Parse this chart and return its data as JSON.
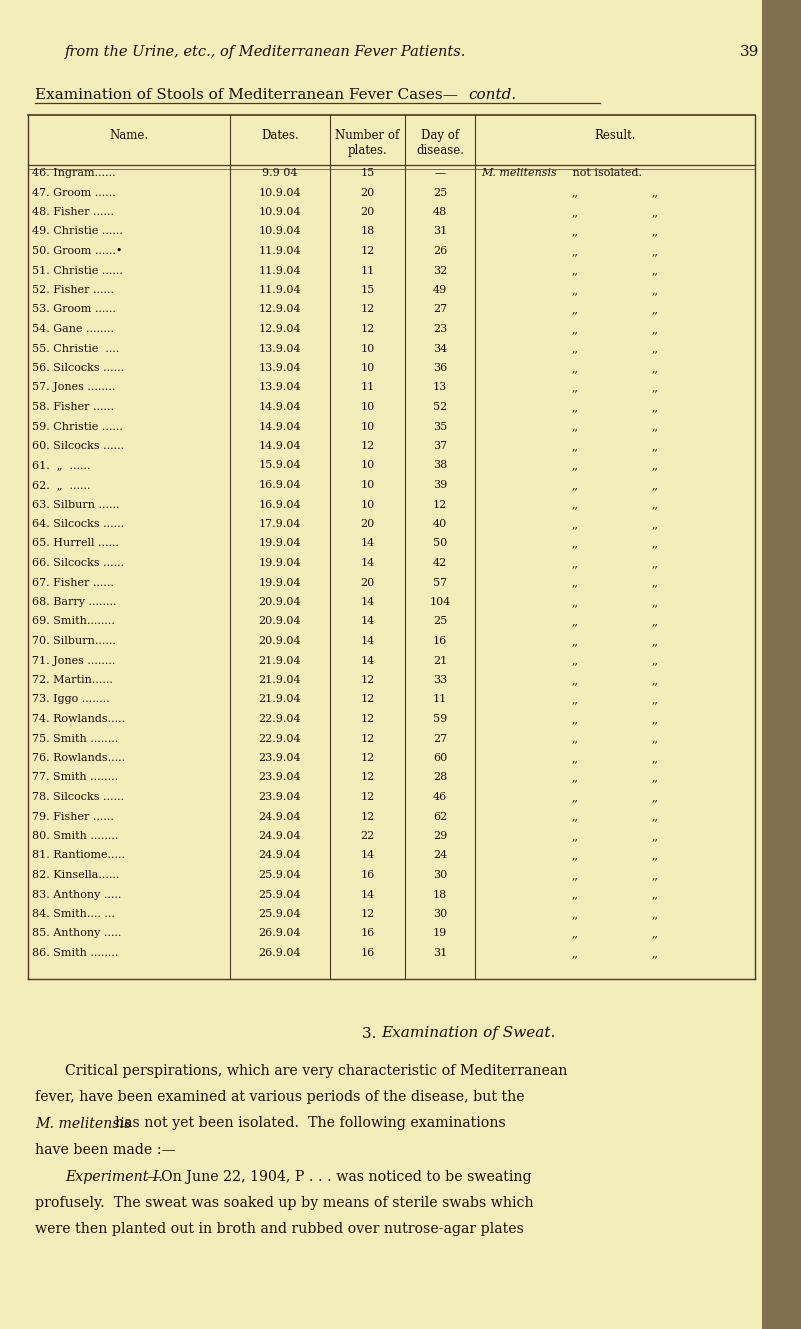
{
  "page_header_italic": "from the Urine, etc., of Mediterranean Fever Patients.",
  "page_number": "39",
  "table_title_normal": "Examination of Stools of Mediterranean Fever Cases—",
  "table_title_italic": "contd.",
  "col_headers": [
    "Name.",
    "Dates.",
    "Number of\nplates.",
    "Day of\ndisease.",
    "Result."
  ],
  "rows": [
    [
      "46. Ingram......",
      "9.9 04",
      "15",
      "—",
      "M. melitensis not isolated."
    ],
    [
      "47. Groom ......",
      "10.9.04",
      "20",
      "25",
      ",,"
    ],
    [
      "48. Fisher ......",
      "10.9.04",
      "20",
      "48",
      ",,"
    ],
    [
      "49. Christie ......",
      "10.9.04",
      "18",
      "31",
      ",,"
    ],
    [
      "50. Groom ......•",
      "11.9.04",
      "12",
      "26",
      ",,"
    ],
    [
      "51. Christie ......",
      "11.9.04",
      "11",
      "32",
      ",,"
    ],
    [
      "52. Fisher ......",
      "11.9.04",
      "15",
      "49",
      ",,"
    ],
    [
      "53. Groom ......",
      "12.9.04",
      "12",
      "27",
      ",,"
    ],
    [
      "54. Gane ........",
      "12.9.04",
      "12",
      "23",
      ",,"
    ],
    [
      "55. Christie  ....",
      "13.9.04",
      "10",
      "34",
      ",,"
    ],
    [
      "56. Silcocks ......",
      "13.9.04",
      "10",
      "36",
      ",,"
    ],
    [
      "57. Jones ........",
      "13.9.04",
      "11",
      "13",
      ",,"
    ],
    [
      "58. Fisher ......",
      "14.9.04",
      "10",
      "52",
      ",,"
    ],
    [
      "59. Christie ......",
      "14.9.04",
      "10",
      "35",
      ",,"
    ],
    [
      "60. Silcocks ......",
      "14.9.04",
      "12",
      "37",
      ",,"
    ],
    [
      "61.  „  ......",
      "15.9.04",
      "10",
      "38",
      ",,"
    ],
    [
      "62.  „  ......",
      "16.9.04",
      "10",
      "39",
      ",,"
    ],
    [
      "63. Silburn ......",
      "16.9.04",
      "10",
      "12",
      ",,"
    ],
    [
      "64. Silcocks ......",
      "17.9.04",
      "20",
      "40",
      ",,"
    ],
    [
      "65. Hurrell ......",
      "19.9.04",
      "14",
      "50",
      ",,"
    ],
    [
      "66. Silcocks ......",
      "19.9.04",
      "14",
      "42",
      ",,"
    ],
    [
      "67. Fisher ......",
      "19.9.04",
      "20",
      "57",
      ",,"
    ],
    [
      "68. Barry ........",
      "20.9.04",
      "14",
      "104",
      ",,"
    ],
    [
      "69. Smith........",
      "20.9.04",
      "14",
      "25",
      ",,"
    ],
    [
      "70. Silburn......",
      "20.9.04",
      "14",
      "16",
      ",,"
    ],
    [
      "71. Jones ........",
      "21.9.04",
      "14",
      "21",
      ",,"
    ],
    [
      "72. Martin......",
      "21.9.04",
      "12",
      "33",
      ",,"
    ],
    [
      "73. Iggo ........",
      "21.9.04",
      "12",
      "11",
      ",,"
    ],
    [
      "74. Rowlands.....",
      "22.9.04",
      "12",
      "59",
      ",,"
    ],
    [
      "75. Smith ........",
      "22.9.04",
      "12",
      "27",
      ",,"
    ],
    [
      "76. Rowlands.....",
      "23.9.04",
      "12",
      "60",
      ",,"
    ],
    [
      "77. Smith ........",
      "23.9.04",
      "12",
      "28",
      ",,"
    ],
    [
      "78. Silcocks ......",
      "23.9.04",
      "12",
      "46",
      ",,"
    ],
    [
      "79. Fisher ......",
      "24.9.04",
      "12",
      "62",
      ",,"
    ],
    [
      "80. Smith ........",
      "24.9.04",
      "22",
      "29",
      ",,"
    ],
    [
      "81. Rantiome.....",
      "24.9.04",
      "14",
      "24",
      ",,"
    ],
    [
      "82. Kinsella......",
      "25.9.04",
      "16",
      "30",
      ",,"
    ],
    [
      "83. Anthony .....",
      "25.9.04",
      "14",
      "18",
      ",,"
    ],
    [
      "84. Smith.... ...",
      "25.9.04",
      "12",
      "30",
      ",,"
    ],
    [
      "85. Anthony .....",
      "26.9.04",
      "16",
      "19",
      ",,"
    ],
    [
      "86. Smith ........",
      "26.9.04",
      "16",
      "31",
      ",,"
    ]
  ],
  "section_title_num": "3. ",
  "section_title_italic": "Examination of Sweat.",
  "body_paragraphs": [
    {
      "lines": [
        {
          "text": "Critical perspirations, which are very characteristic of Mediterranean",
          "indent": true
        },
        {
          "text": "fever, have been examined at various periods of the disease, but the",
          "indent": false
        },
        {
          "text": "has not yet been isolated.  The following examinations",
          "indent": false,
          "italic_prefix": "M. melitensis "
        },
        {
          "text": "have been made :—",
          "indent": false
        }
      ]
    },
    {
      "lines": [
        {
          "text": "—On June 22, 1904, P . . . was noticed to be sweating",
          "indent": false,
          "italic_prefix": "Experiment I."
        },
        {
          "text": "profusely.  The sweat was soaked up by means of sterile swabs which",
          "indent": false
        },
        {
          "text": "were then planted out in broth and rubbed over nutrose-agar plates",
          "indent": false
        }
      ]
    }
  ],
  "bg_color": "#f2edba",
  "text_color": "#1a1008",
  "line_color": "#4a3a1a",
  "right_edge_color": "#8b7355"
}
